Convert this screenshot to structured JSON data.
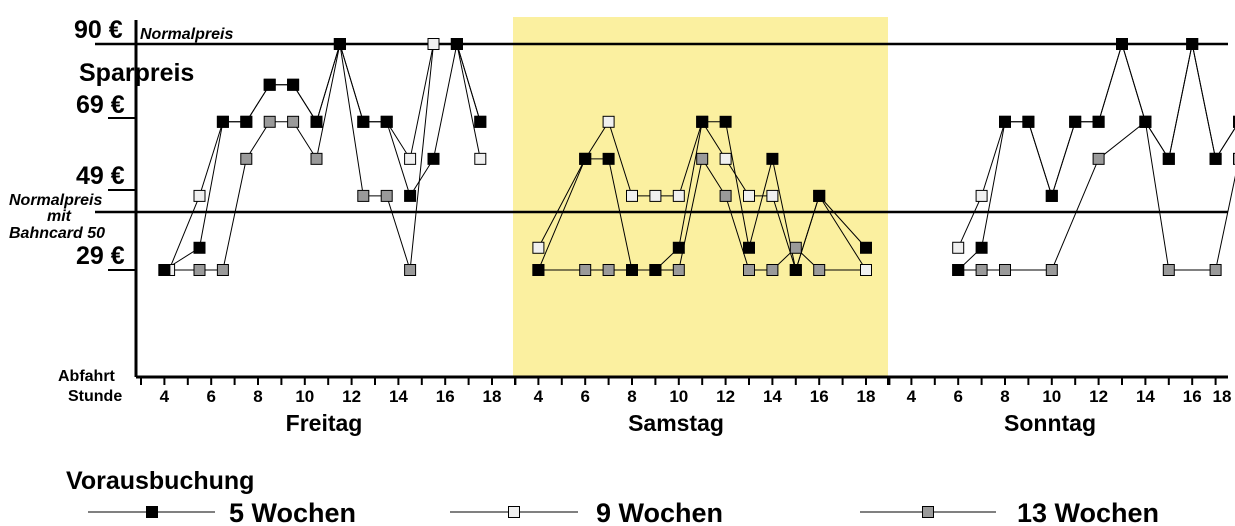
{
  "chart_data": {
    "type": "line",
    "ylabels": [
      {
        "text": "90 €",
        "value": 90
      },
      {
        "text": "69 €",
        "value": 69
      },
      {
        "text": "49 €",
        "value": 49
      },
      {
        "text": "29 €",
        "value": 29
      }
    ],
    "ref_lines": [
      {
        "label": "Normalpreis",
        "value": 90
      },
      {
        "label_lines": [
          "Normalpreis",
          "mit",
          "Bahncard 50"
        ],
        "value": 47
      }
    ],
    "sparpreis_label": "Sparpreis",
    "axis_label_top": "Abfahrt",
    "axis_label_bottom": "Stunde",
    "highlight_color": "#fbf0a0",
    "highlight_day": "Samstag",
    "days": [
      {
        "name": "Freitag",
        "ticks": [
          "4",
          "6",
          "8",
          "10",
          "12",
          "14",
          "16",
          "18"
        ]
      },
      {
        "name": "Samstag",
        "ticks": [
          "4",
          "6",
          "8",
          "10",
          "12",
          "14",
          "16",
          "18"
        ]
      },
      {
        "name": "Sonntag",
        "ticks": [
          "4",
          "6",
          "8",
          "10",
          "12",
          "14",
          "16",
          "18"
        ]
      }
    ],
    "legend_title": "Vorausbuchung",
    "series": [
      {
        "name": "5 Wochen",
        "color": "#000000",
        "points": [
          [
            0,
            4,
            29
          ],
          [
            0,
            5.5,
            35
          ],
          [
            0,
            6.5,
            69
          ],
          [
            0,
            7.5,
            69
          ],
          [
            0,
            8.5,
            79
          ],
          [
            0,
            9.5,
            79
          ],
          [
            0,
            10.5,
            69
          ],
          [
            0,
            11.5,
            90
          ],
          [
            0,
            12.5,
            69
          ],
          [
            0,
            13.5,
            69
          ],
          [
            0,
            14.5,
            49
          ],
          [
            0,
            15.5,
            59
          ],
          [
            0,
            16.5,
            90
          ],
          [
            0,
            17.5,
            69
          ],
          [
            1,
            4,
            29
          ],
          [
            1,
            6,
            59
          ],
          [
            1,
            7,
            59
          ],
          [
            1,
            8,
            29
          ],
          [
            1,
            9,
            29
          ],
          [
            1,
            10,
            35
          ],
          [
            1,
            11,
            69
          ],
          [
            1,
            12,
            69
          ],
          [
            1,
            13,
            35
          ],
          [
            1,
            14,
            59
          ],
          [
            1,
            15,
            29
          ],
          [
            1,
            16,
            49
          ],
          [
            1,
            18,
            35
          ],
          [
            2,
            6,
            29
          ],
          [
            2,
            7,
            35
          ],
          [
            2,
            8,
            69
          ],
          [
            2,
            9,
            69
          ],
          [
            2,
            10,
            49
          ],
          [
            2,
            11,
            69
          ],
          [
            2,
            12,
            69
          ],
          [
            2,
            13,
            90
          ],
          [
            2,
            14,
            69
          ],
          [
            2,
            15,
            59
          ],
          [
            2,
            16,
            90
          ],
          [
            2,
            17,
            59
          ],
          [
            2,
            18,
            69
          ]
        ]
      },
      {
        "name": "9 Wochen",
        "color": "#f0f0f0",
        "points": [
          [
            0,
            4.2,
            29
          ],
          [
            0,
            5.5,
            49
          ],
          [
            0,
            6.5,
            69
          ],
          [
            0,
            7.5,
            69
          ],
          [
            0,
            8.5,
            79
          ],
          [
            0,
            9.5,
            79
          ],
          [
            0,
            10.5,
            69
          ],
          [
            0,
            11.5,
            90
          ],
          [
            0,
            12.5,
            69
          ],
          [
            0,
            13.5,
            69
          ],
          [
            0,
            14.5,
            59
          ],
          [
            0,
            15.5,
            90
          ],
          [
            0,
            16.5,
            90
          ],
          [
            0,
            17.5,
            59
          ],
          [
            1,
            4,
            35
          ],
          [
            1,
            6,
            59
          ],
          [
            1,
            7,
            69
          ],
          [
            1,
            8,
            49
          ],
          [
            1,
            9,
            49
          ],
          [
            1,
            10,
            49
          ],
          [
            1,
            11,
            69
          ],
          [
            1,
            12,
            59
          ],
          [
            1,
            13,
            49
          ],
          [
            1,
            14,
            49
          ],
          [
            1,
            15,
            29
          ],
          [
            1,
            16,
            49
          ],
          [
            1,
            18,
            29
          ],
          [
            2,
            6,
            35
          ],
          [
            2,
            7,
            49
          ],
          [
            2,
            8,
            69
          ],
          [
            2,
            9,
            69
          ],
          [
            2,
            10,
            49
          ],
          [
            2,
            11,
            69
          ],
          [
            2,
            12,
            69
          ],
          [
            2,
            13,
            90
          ],
          [
            2,
            14,
            69
          ],
          [
            2,
            15,
            59
          ],
          [
            2,
            16,
            90
          ],
          [
            2,
            17,
            59
          ],
          [
            2,
            18,
            69
          ]
        ]
      },
      {
        "name": "13 Wochen",
        "color": "#9a9a9a",
        "points": [
          [
            0,
            4,
            29
          ],
          [
            0,
            5.5,
            29
          ],
          [
            0,
            6.5,
            29
          ],
          [
            0,
            7.5,
            59
          ],
          [
            0,
            8.5,
            69
          ],
          [
            0,
            9.5,
            69
          ],
          [
            0,
            10.5,
            59
          ],
          [
            0,
            11.5,
            90
          ],
          [
            0,
            12.5,
            49
          ],
          [
            0,
            13.5,
            49
          ],
          [
            0,
            14.5,
            29
          ],
          [
            0,
            15.5,
            90
          ],
          [
            0,
            16.5,
            90
          ],
          [
            0,
            17.5,
            69
          ],
          [
            1,
            4,
            29
          ],
          [
            1,
            6,
            29
          ],
          [
            1,
            7,
            29
          ],
          [
            1,
            8,
            29
          ],
          [
            1,
            9,
            29
          ],
          [
            1,
            10,
            29
          ],
          [
            1,
            11,
            59
          ],
          [
            1,
            12,
            49
          ],
          [
            1,
            13,
            29
          ],
          [
            1,
            14,
            29
          ],
          [
            1,
            15,
            35
          ],
          [
            1,
            16,
            29
          ],
          [
            1,
            18,
            29
          ],
          [
            2,
            6,
            29
          ],
          [
            2,
            7,
            29
          ],
          [
            2,
            8,
            29
          ],
          [
            2,
            10,
            29
          ],
          [
            2,
            12,
            59
          ],
          [
            2,
            14,
            69
          ],
          [
            2,
            15,
            29
          ],
          [
            2,
            17,
            29
          ],
          [
            2,
            18,
            59
          ]
        ]
      }
    ]
  }
}
